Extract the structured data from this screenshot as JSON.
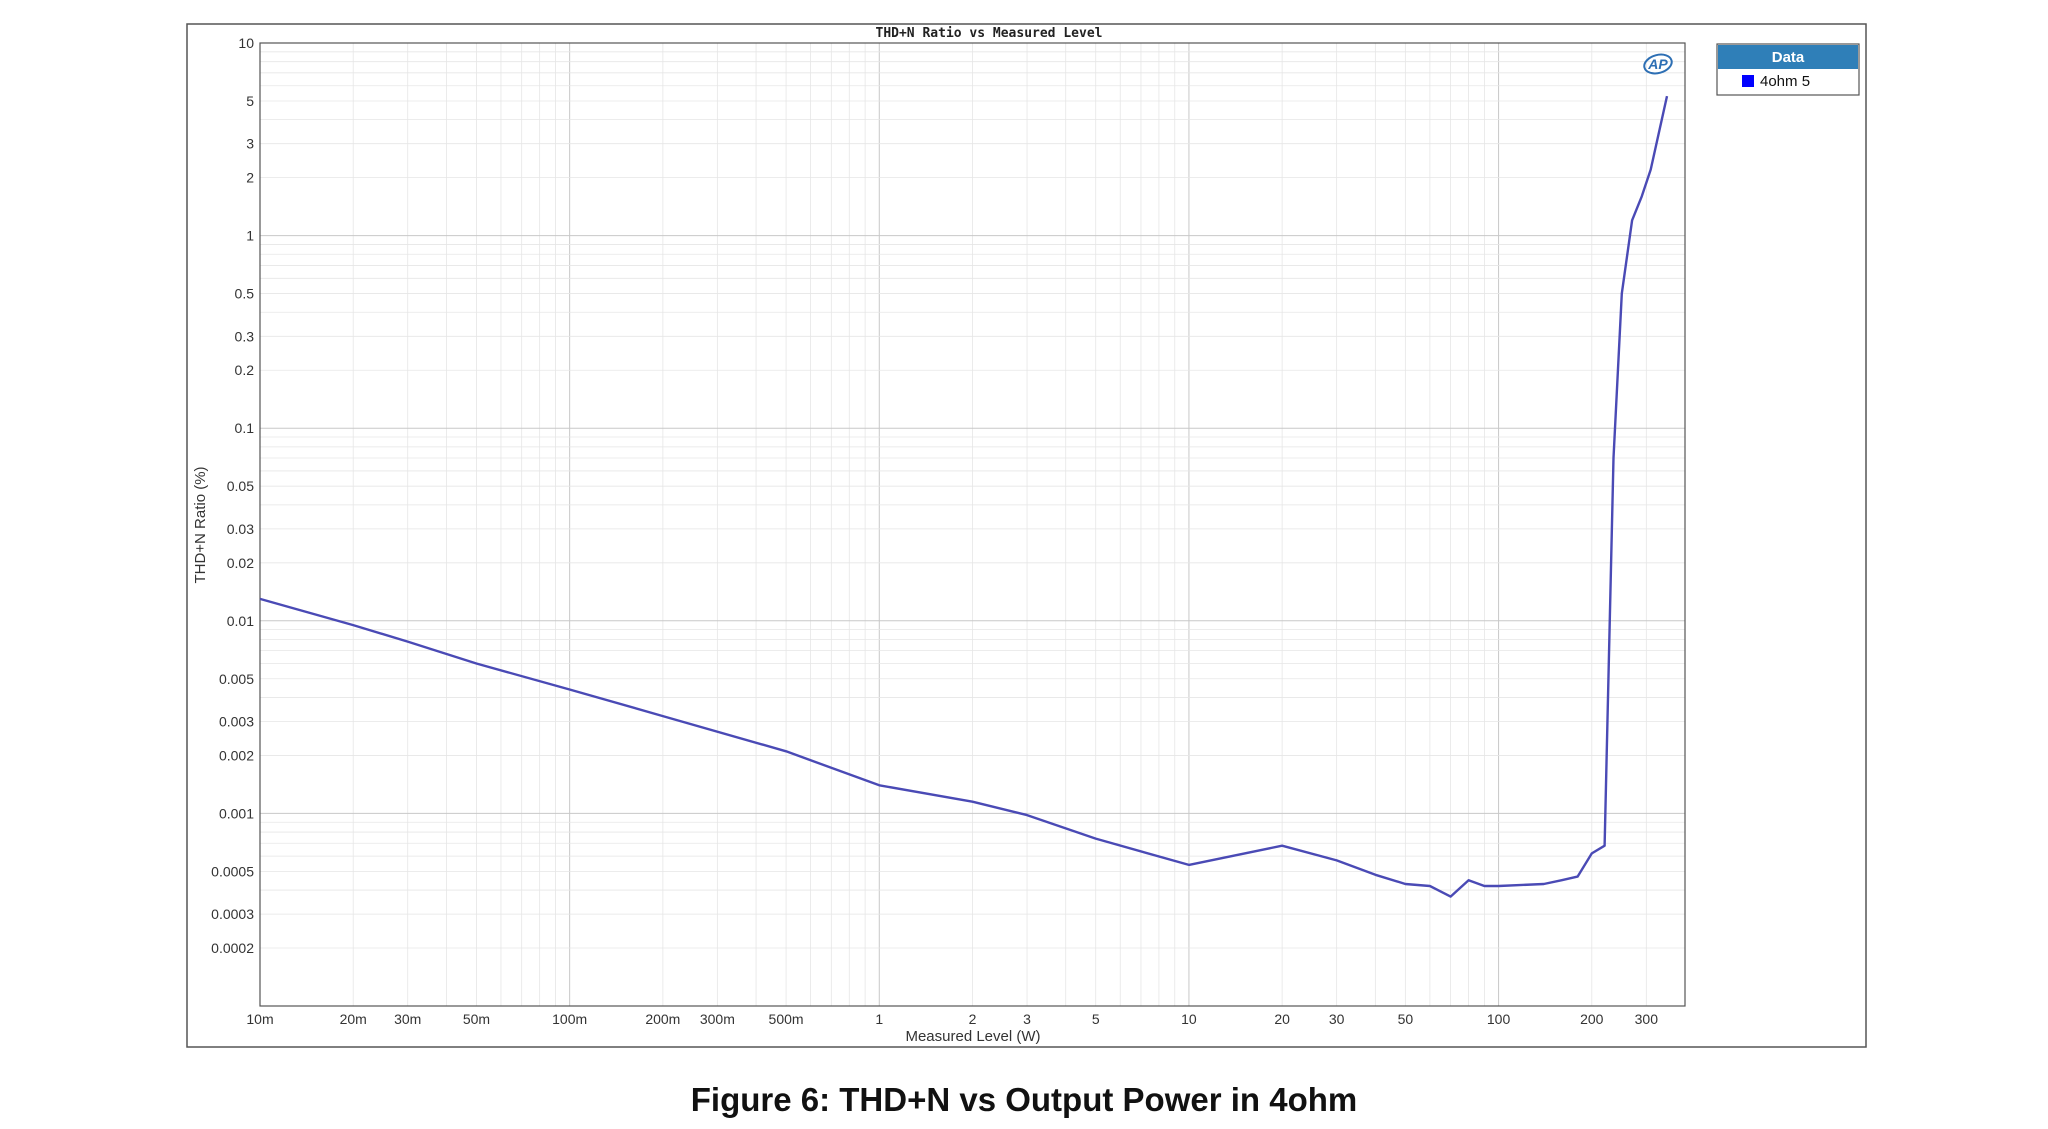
{
  "caption": "Figure 6: THD+N vs Output Power in 4ohm",
  "logo": {
    "text": "AP"
  },
  "legend": {
    "title": "Data",
    "entries": [
      {
        "label": "4ohm 5",
        "color": "#0000ff"
      }
    ]
  },
  "colors": {
    "series": "#4a4ab5",
    "legend_header": "#2f7fb8",
    "grid_major": "#c8c8c8",
    "grid_minor": "#e6e6e6",
    "frame": "#555555"
  },
  "chart_data": {
    "type": "line",
    "title": "THD+N Ratio vs Measured Level",
    "xlabel": "Measured Level (W)",
    "ylabel": "THD+N Ratio (%)",
    "xscale": "log",
    "yscale": "log",
    "xlim": [
      0.01,
      400
    ],
    "ylim": [
      0.0001,
      10
    ],
    "grid": true,
    "legend_position": "top-right outside",
    "x_ticks": [
      {
        "v": 0.01,
        "label": "10m"
      },
      {
        "v": 0.02,
        "label": "20m"
      },
      {
        "v": 0.03,
        "label": "30m"
      },
      {
        "v": 0.05,
        "label": "50m"
      },
      {
        "v": 0.1,
        "label": "100m"
      },
      {
        "v": 0.2,
        "label": "200m"
      },
      {
        "v": 0.3,
        "label": "300m"
      },
      {
        "v": 0.5,
        "label": "500m"
      },
      {
        "v": 1,
        "label": "1"
      },
      {
        "v": 2,
        "label": "2"
      },
      {
        "v": 3,
        "label": "3"
      },
      {
        "v": 5,
        "label": "5"
      },
      {
        "v": 10,
        "label": "10"
      },
      {
        "v": 20,
        "label": "20"
      },
      {
        "v": 30,
        "label": "30"
      },
      {
        "v": 50,
        "label": "50"
      },
      {
        "v": 100,
        "label": "100"
      },
      {
        "v": 200,
        "label": "200"
      },
      {
        "v": 300,
        "label": "300"
      }
    ],
    "y_ticks": [
      {
        "v": 10,
        "label": "10"
      },
      {
        "v": 5,
        "label": "5"
      },
      {
        "v": 3,
        "label": "3"
      },
      {
        "v": 2,
        "label": "2"
      },
      {
        "v": 1,
        "label": "1"
      },
      {
        "v": 0.5,
        "label": "0.5"
      },
      {
        "v": 0.3,
        "label": "0.3"
      },
      {
        "v": 0.2,
        "label": "0.2"
      },
      {
        "v": 0.1,
        "label": "0.1"
      },
      {
        "v": 0.05,
        "label": "0.05"
      },
      {
        "v": 0.03,
        "label": "0.03"
      },
      {
        "v": 0.02,
        "label": "0.02"
      },
      {
        "v": 0.01,
        "label": "0.01"
      },
      {
        "v": 0.005,
        "label": "0.005"
      },
      {
        "v": 0.003,
        "label": "0.003"
      },
      {
        "v": 0.002,
        "label": "0.002"
      },
      {
        "v": 0.001,
        "label": "0.001"
      },
      {
        "v": 0.0005,
        "label": "0.0005"
      },
      {
        "v": 0.0003,
        "label": "0.0003"
      },
      {
        "v": 0.0002,
        "label": "0.0002"
      }
    ],
    "series": [
      {
        "name": "4ohm 5",
        "color": "#4a4ab5",
        "points": [
          [
            0.01,
            0.013
          ],
          [
            0.02,
            0.0095
          ],
          [
            0.03,
            0.0078
          ],
          [
            0.05,
            0.006
          ],
          [
            0.1,
            0.0044
          ],
          [
            0.2,
            0.0032
          ],
          [
            0.5,
            0.0021
          ],
          [
            1,
            0.0014
          ],
          [
            2,
            0.00115
          ],
          [
            3,
            0.00098
          ],
          [
            5,
            0.00074
          ],
          [
            10,
            0.00054
          ],
          [
            20,
            0.00068
          ],
          [
            30,
            0.00057
          ],
          [
            40,
            0.00048
          ],
          [
            50,
            0.00043
          ],
          [
            60,
            0.00042
          ],
          [
            70,
            0.00037
          ],
          [
            80,
            0.00045
          ],
          [
            90,
            0.00042
          ],
          [
            100,
            0.00042
          ],
          [
            140,
            0.00043
          ],
          [
            160,
            0.00045
          ],
          [
            180,
            0.00047
          ],
          [
            200,
            0.00062
          ],
          [
            220,
            0.00068
          ],
          [
            235,
            0.07
          ],
          [
            250,
            0.5
          ],
          [
            270,
            1.2
          ],
          [
            290,
            1.6
          ],
          [
            310,
            2.2
          ],
          [
            350,
            5.3
          ]
        ]
      }
    ]
  }
}
